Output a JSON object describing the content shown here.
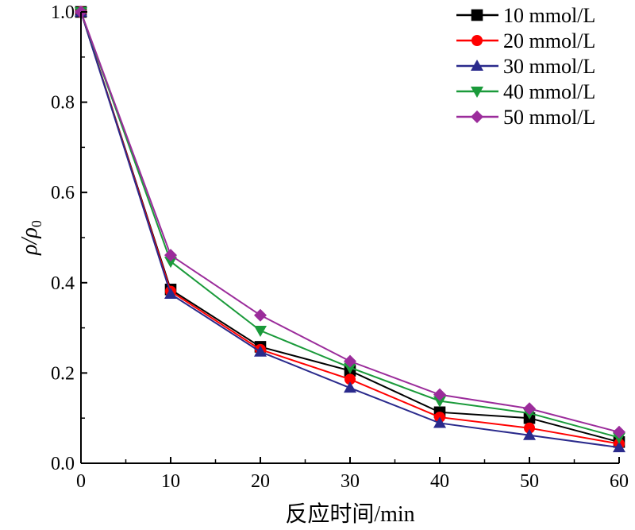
{
  "chart_data": {
    "type": "line",
    "xlabel": "反应时间/min",
    "ylabel": "ρ/ρ0",
    "ylabel_parts": {
      "base": "ρ/ρ",
      "subscript": "0"
    },
    "xlim": [
      0,
      60
    ],
    "ylim": [
      0.0,
      1.0
    ],
    "x_ticks": [
      0,
      10,
      20,
      30,
      40,
      50,
      60
    ],
    "x_tick_labels": [
      "0",
      "10",
      "20",
      "30",
      "40",
      "50",
      "60"
    ],
    "y_ticks": [
      0.0,
      0.2,
      0.4,
      0.6,
      0.8,
      1.0
    ],
    "y_tick_labels": [
      "0.0",
      "0.2",
      "0.4",
      "0.6",
      "0.8",
      "1.0"
    ],
    "grid": false,
    "legend_position": "top-right",
    "x": [
      0,
      10,
      20,
      30,
      40,
      50,
      60
    ],
    "series": [
      {
        "name": "10 mmol/L",
        "color": "#000000",
        "marker": "square",
        "values": [
          1.0,
          0.385,
          0.258,
          0.205,
          0.113,
          0.1,
          0.047
        ]
      },
      {
        "name": "20 mmol/L",
        "color": "#ff0000",
        "marker": "circle",
        "values": [
          1.0,
          0.381,
          0.252,
          0.186,
          0.102,
          0.078,
          0.043
        ]
      },
      {
        "name": "30 mmol/L",
        "color": "#2a2a8c",
        "marker": "triangle-up",
        "values": [
          1.0,
          0.375,
          0.247,
          0.167,
          0.089,
          0.062,
          0.035
        ]
      },
      {
        "name": "40 mmol/L",
        "color": "#1a9a3a",
        "marker": "triangle-down",
        "values": [
          1.0,
          0.447,
          0.294,
          0.212,
          0.138,
          0.111,
          0.057
        ]
      },
      {
        "name": "50 mmol/L",
        "color": "#9b2c9b",
        "marker": "diamond",
        "values": [
          1.0,
          0.461,
          0.328,
          0.226,
          0.152,
          0.121,
          0.069
        ]
      }
    ]
  }
}
